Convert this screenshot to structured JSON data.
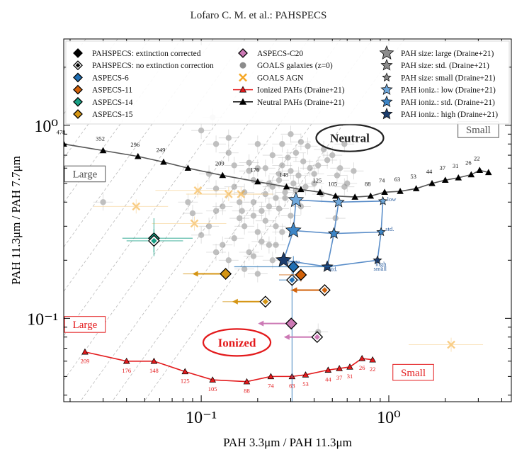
{
  "page_header": "Lofaro C. M. et al.: PAHSPECS",
  "chart_data": {
    "type": "scatter",
    "xscale": "log",
    "yscale": "log",
    "xlim": [
      0.0185,
      4.5
    ],
    "ylim": [
      0.037,
      2.8
    ],
    "xlabel": "PAH 3.3μm / PAH 11.3μm",
    "ylabel": "PAH 11.3μm / PAH 7.7μm",
    "x_ticks": [
      {
        "v": 0.1,
        "label": "10⁻¹"
      },
      {
        "v": 1,
        "label": "10⁰"
      }
    ],
    "y_ticks": [
      {
        "v": 0.1,
        "label": "10⁻¹"
      },
      {
        "v": 1,
        "label": "10⁰"
      }
    ],
    "grid": false,
    "legend_position": "top",
    "legend": [
      {
        "label": "PAHSPECS: extinction corrected",
        "marker": "diamond",
        "color": "#000000",
        "fill": true
      },
      {
        "label": "PAHSPECS: no extinction correction",
        "marker": "diamond",
        "color": "#000000",
        "fill": false
      },
      {
        "label": "ASPECS-6",
        "marker": "diamond",
        "color": "#1f6fb4",
        "fill": true
      },
      {
        "label": "ASPECS-11",
        "marker": "diamond",
        "color": "#d2620a",
        "fill": true
      },
      {
        "label": "ASPECS-14",
        "marker": "diamond",
        "color": "#17a085",
        "fill": true
      },
      {
        "label": "ASPECS-15",
        "marker": "diamond",
        "color": "#d59514",
        "fill": true
      },
      {
        "label": "ASPECS-C20",
        "marker": "diamond",
        "color": "#cc79b5",
        "fill": true
      },
      {
        "label": "GOALS galaxies (z=0)",
        "marker": "circle",
        "color": "#8c8c8c",
        "fill": true
      },
      {
        "label": "GOALS AGN",
        "marker": "x",
        "color": "#f5a623",
        "fill": false
      },
      {
        "label": "Ionized PAHs (Draine+21)",
        "marker": "triangle",
        "color": "#e31a1c",
        "fill": true
      },
      {
        "label": "Neutral PAHs (Draine+21)",
        "marker": "triangle",
        "color": "#000000",
        "fill": true
      },
      {
        "label": "PAH size: large (Draine+21)",
        "marker": "star",
        "color": "#8c8c8c",
        "fill": true
      },
      {
        "label": "PAH size: std. (Draine+21)",
        "marker": "star",
        "color": "#8c8c8c",
        "fill": true
      },
      {
        "label": "PAH size: small (Draine+21)",
        "marker": "star",
        "color": "#8c8c8c",
        "fill": true
      },
      {
        "label": "PAH ioniz.: low (Draine+21)",
        "marker": "star",
        "color": "#6fa8dc",
        "fill": true
      },
      {
        "label": "PAH ioniz.: std. (Draine+21)",
        "marker": "star",
        "color": "#3d85c6",
        "fill": true
      },
      {
        "label": "PAH ioniz.: high (Draine+21)",
        "marker": "star",
        "color": "#1c3d6e",
        "fill": true
      }
    ],
    "neutral_track": {
      "name": "Neutral PAHs (Draine+21)",
      "color": "#555555",
      "x": [
        0.0185,
        0.03,
        0.046,
        0.063,
        0.085,
        0.13,
        0.2,
        0.285,
        0.34,
        0.43,
        0.52,
        0.66,
        0.8,
        0.95,
        1.15,
        1.4,
        1.7,
        2.0,
        2.35,
        2.75,
        3.05,
        3.4
      ],
      "y": [
        0.8,
        0.74,
        0.69,
        0.645,
        0.6,
        0.55,
        0.51,
        0.48,
        0.465,
        0.45,
        0.43,
        0.425,
        0.43,
        0.45,
        0.455,
        0.47,
        0.5,
        0.52,
        0.535,
        0.555,
        0.585,
        0.57
      ],
      "labels": [
        {
          "i": 0,
          "t": "478"
        },
        {
          "i": 1,
          "t": "352"
        },
        {
          "i": 2,
          "t": "296"
        },
        {
          "i": 3,
          "t": "249"
        },
        {
          "i": 5,
          "t": "209"
        },
        {
          "i": 6,
          "t": "176"
        },
        {
          "i": 7,
          "t": "148"
        },
        {
          "i": 9,
          "t": "125"
        },
        {
          "i": 10,
          "t": "105"
        },
        {
          "i": 12,
          "t": "88"
        },
        {
          "i": 13,
          "t": "74"
        },
        {
          "i": 14,
          "t": "63"
        },
        {
          "i": 15,
          "t": "53"
        },
        {
          "i": 16,
          "t": "44"
        },
        {
          "i": 17,
          "t": "37"
        },
        {
          "i": 18,
          "t": "31"
        },
        {
          "i": 19,
          "t": "26"
        },
        {
          "i": 20,
          "t": "22"
        }
      ]
    },
    "ionized_track": {
      "name": "Ionized PAHs (Draine+21)",
      "color": "#e31a1c",
      "x": [
        0.024,
        0.04,
        0.056,
        0.082,
        0.115,
        0.175,
        0.235,
        0.305,
        0.36,
        0.475,
        0.545,
        0.62,
        0.72,
        0.82
      ],
      "y": [
        0.067,
        0.06,
        0.06,
        0.053,
        0.048,
        0.047,
        0.05,
        0.05,
        0.051,
        0.054,
        0.055,
        0.056,
        0.062,
        0.061
      ],
      "labels": [
        {
          "i": 0,
          "t": "209"
        },
        {
          "i": 1,
          "t": "176"
        },
        {
          "i": 2,
          "t": "148"
        },
        {
          "i": 3,
          "t": "125"
        },
        {
          "i": 4,
          "t": "105"
        },
        {
          "i": 5,
          "t": "88"
        },
        {
          "i": 6,
          "t": "74"
        },
        {
          "i": 7,
          "t": "63"
        },
        {
          "i": 8,
          "t": "53"
        },
        {
          "i": 9,
          "t": "44"
        },
        {
          "i": 10,
          "t": "37"
        },
        {
          "i": 11,
          "t": "31"
        },
        {
          "i": 12,
          "t": "26"
        },
        {
          "i": 13,
          "t": "22"
        }
      ]
    },
    "draine_grid": [
      {
        "name": "high",
        "color": "#1c3d6e",
        "pts": [
          [
            0.275,
            0.2
          ],
          [
            0.47,
            0.185
          ],
          [
            0.87,
            0.2
          ]
        ]
      },
      {
        "name": "std",
        "color": "#3d85c6",
        "pts": [
          [
            0.31,
            0.285
          ],
          [
            0.51,
            0.275
          ],
          [
            0.91,
            0.28
          ]
        ]
      },
      {
        "name": "low",
        "color": "#6fa8dc",
        "pts": [
          [
            0.32,
            0.41
          ],
          [
            0.54,
            0.4
          ],
          [
            0.93,
            0.405
          ]
        ]
      }
    ],
    "grid_labels": [
      {
        "x": 0.29,
        "y": 0.192,
        "t": "large",
        "color": "#2a5d9f"
      },
      {
        "x": 0.48,
        "y": 0.176,
        "t": "std.",
        "color": "#2a5d9f"
      },
      {
        "x": 0.85,
        "y": 0.187,
        "t": "high",
        "color": "#2a5d9f"
      },
      {
        "x": 0.83,
        "y": 0.177,
        "t": "small",
        "color": "#2a5d9f"
      },
      {
        "x": 0.96,
        "y": 0.283,
        "t": "std.",
        "color": "#2a5d9f"
      },
      {
        "x": 0.98,
        "y": 0.405,
        "t": "low",
        "color": "#2a5d9f"
      }
    ],
    "aspecs": [
      {
        "name": "ASPECS-6",
        "color": "#1f6fb4",
        "x": 0.305,
        "y": 0.158,
        "xerr": [
          0.26,
          0.34
        ],
        "yerr": [
          0.035,
          0.18
        ],
        "arrow": false,
        "open": true
      },
      {
        "name": "ASPECS-6",
        "color": "#1f6fb4",
        "x": 0.31,
        "y": 0.185,
        "xerr": [
          0.15,
          0.5
        ],
        "yerr": [
          0.16,
          0.21
        ],
        "arrow": false,
        "open": false
      },
      {
        "name": "ASPECS-11",
        "color": "#d2620a",
        "x": 0.455,
        "y": 0.14,
        "xerr": [
          0.3,
          0.46
        ],
        "yerr": [
          0.13,
          0.15
        ],
        "arrow": true,
        "open": true
      },
      {
        "name": "ASPECS-11",
        "color": "#d2620a",
        "x": 0.34,
        "y": 0.168,
        "xerr": [
          0.26,
          0.34
        ],
        "yerr": [
          0.155,
          0.18
        ],
        "arrow": false,
        "open": false
      },
      {
        "name": "ASPECS-14",
        "color": "#17a085",
        "x": 0.056,
        "y": 0.26,
        "xerr": [
          0.038,
          0.09
        ],
        "yerr": [
          0.21,
          0.33
        ],
        "arrow": false,
        "open": false
      },
      {
        "name": "ASPECS-14",
        "color": "#17a085",
        "x": 0.056,
        "y": 0.252,
        "xerr": [
          0.04,
          0.08
        ],
        "yerr": [
          0.22,
          0.29
        ],
        "arrow": false,
        "open": true
      },
      {
        "name": "ASPECS-15",
        "color": "#d59514",
        "x": 0.135,
        "y": 0.17,
        "xerr": [
          0.08,
          0.135
        ],
        "yerr": [
          0.16,
          0.18
        ],
        "arrow": true,
        "open": false
      },
      {
        "name": "ASPECS-15",
        "color": "#d59514",
        "x": 0.22,
        "y": 0.122,
        "xerr": [
          0.13,
          0.22
        ],
        "yerr": [
          0.115,
          0.13
        ],
        "arrow": true,
        "open": true
      },
      {
        "name": "ASPECS-C20",
        "color": "#cc79b5",
        "x": 0.302,
        "y": 0.094,
        "xerr": [
          0.22,
          0.302
        ],
        "yerr": [
          0.09,
          0.1
        ],
        "arrow": true,
        "open": false
      },
      {
        "name": "ASPECS-C20",
        "color": "#cc79b5",
        "x": 0.415,
        "y": 0.08,
        "xerr": [
          0.31,
          0.415
        ],
        "yerr": [
          0.077,
          0.083
        ],
        "arrow": true,
        "open": true
      }
    ],
    "goals_agn": [
      [
        0.045,
        0.38
      ],
      [
        0.096,
        0.46
      ],
      [
        0.14,
        0.44
      ],
      [
        0.163,
        0.44
      ],
      [
        0.092,
        0.31
      ],
      [
        2.15,
        0.073
      ]
    ],
    "goals": [
      [
        0.12,
        0.47
      ],
      [
        0.11,
        0.56
      ],
      [
        0.15,
        0.62
      ],
      [
        0.13,
        0.38
      ],
      [
        0.17,
        0.45
      ],
      [
        0.19,
        0.52
      ],
      [
        0.14,
        0.72
      ],
      [
        0.2,
        0.8
      ],
      [
        0.18,
        0.64
      ],
      [
        0.22,
        0.6
      ],
      [
        0.24,
        0.7
      ],
      [
        0.23,
        0.5
      ],
      [
        0.26,
        0.52
      ],
      [
        0.27,
        0.62
      ],
      [
        0.3,
        0.58
      ],
      [
        0.29,
        0.68
      ],
      [
        0.32,
        0.72
      ],
      [
        0.35,
        0.65
      ],
      [
        0.33,
        0.55
      ],
      [
        0.38,
        0.6
      ],
      [
        0.4,
        0.5
      ],
      [
        0.42,
        0.62
      ],
      [
        0.45,
        0.75
      ],
      [
        0.5,
        0.7
      ],
      [
        0.55,
        0.6
      ],
      [
        0.6,
        0.5
      ],
      [
        0.16,
        0.33
      ],
      [
        0.17,
        0.3
      ],
      [
        0.2,
        0.28
      ],
      [
        0.22,
        0.32
      ],
      [
        0.25,
        0.3
      ],
      [
        0.15,
        0.26
      ],
      [
        0.13,
        0.24
      ],
      [
        0.18,
        0.22
      ],
      [
        0.21,
        0.25
      ],
      [
        0.23,
        0.38
      ],
      [
        0.25,
        0.42
      ],
      [
        0.28,
        0.45
      ],
      [
        0.31,
        0.5
      ],
      [
        0.19,
        0.4
      ],
      [
        0.21,
        0.36
      ],
      [
        0.16,
        0.4
      ],
      [
        0.26,
        0.37
      ],
      [
        0.3,
        0.34
      ],
      [
        0.34,
        0.38
      ],
      [
        0.27,
        0.8
      ],
      [
        0.3,
        0.9
      ],
      [
        0.1,
        0.94
      ],
      [
        0.115,
        1.1
      ],
      [
        0.12,
        0.8
      ],
      [
        0.14,
        0.86
      ],
      [
        0.34,
        0.82
      ],
      [
        0.37,
        0.78
      ],
      [
        0.47,
        0.66
      ],
      [
        0.53,
        0.55
      ],
      [
        0.12,
        0.36
      ],
      [
        0.11,
        0.3
      ],
      [
        0.165,
        0.36
      ],
      [
        0.19,
        0.34
      ],
      [
        0.22,
        0.44
      ],
      [
        0.24,
        0.48
      ],
      [
        0.26,
        0.56
      ],
      [
        0.28,
        0.42
      ],
      [
        0.32,
        0.46
      ],
      [
        0.085,
        0.4
      ],
      [
        0.09,
        0.35
      ],
      [
        0.1,
        0.27
      ],
      [
        0.12,
        0.22
      ],
      [
        0.14,
        0.2
      ],
      [
        0.17,
        0.18
      ],
      [
        0.19,
        0.21
      ],
      [
        0.23,
        0.24
      ],
      [
        0.2,
        0.6
      ],
      [
        0.36,
        0.48
      ],
      [
        0.4,
        0.56
      ],
      [
        0.44,
        0.44
      ],
      [
        0.58,
        0.48
      ],
      [
        0.65,
        0.58
      ],
      [
        0.25,
        0.24
      ],
      [
        0.27,
        0.28
      ],
      [
        0.15,
        0.48
      ],
      [
        0.18,
        0.58
      ],
      [
        0.58,
        0.8
      ],
      [
        0.42,
        0.085
      ],
      [
        0.52,
        0.33
      ],
      [
        0.03,
        0.4
      ],
      [
        0.2,
        0.17
      ],
      [
        0.24,
        0.2
      ]
    ],
    "annotations": [
      {
        "t": "Neutral",
        "x": 0.62,
        "y": 0.86,
        "color": "#222222",
        "box": "ellipse"
      },
      {
        "t": "Ionized",
        "x": 0.155,
        "y": 0.075,
        "color": "#e31a1c",
        "box": "ellipse"
      },
      {
        "t": "Large",
        "x": 0.024,
        "y": 0.56,
        "color": "#555555",
        "box": "rect"
      },
      {
        "t": "Small",
        "x": 3.0,
        "y": 0.95,
        "color": "#555555",
        "box": "rect"
      },
      {
        "t": "Large",
        "x": 0.024,
        "y": 0.093,
        "color": "#e31a1c",
        "box": "rect"
      },
      {
        "t": "Small",
        "x": 1.35,
        "y": 0.0525,
        "color": "#e31a1c",
        "box": "rect"
      }
    ],
    "colors": {
      "neutral": "#555555",
      "ionized": "#e31a1c",
      "goals": "#8c8c8c",
      "agn": "#f5a623",
      "grid_line": "#bbbbbb"
    }
  }
}
